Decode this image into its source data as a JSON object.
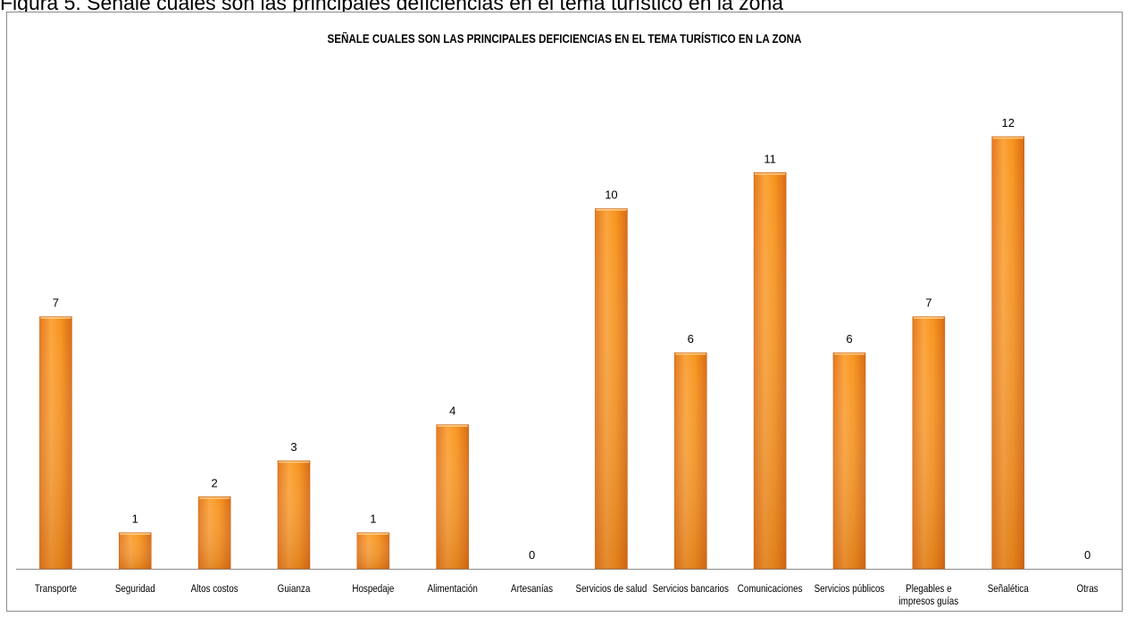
{
  "figure_caption": "Figura 5. Señale cuales son las principales deficiencias en el tema turístico en la zona",
  "chart_data": {
    "type": "bar",
    "title": "SEÑALE CUALES SON LAS PRINCIPALES DEFICIENCIAS EN EL TEMA TURÍSTICO EN LA ZONA",
    "xlabel": "",
    "ylabel": "",
    "categories": [
      "Transporte",
      "Seguridad",
      "Altos costos",
      "Guianza",
      "Hospedaje",
      "Alimentación",
      "Artesanías",
      "Servicios de salud",
      "Servicios bancarios",
      "Comunicaciones",
      "Servicios públicos",
      "Plegables e impresos guías",
      "Señalética",
      "Otras"
    ],
    "values": [
      7,
      1,
      2,
      3,
      1,
      4,
      0,
      10,
      6,
      11,
      6,
      7,
      12,
      0
    ],
    "ylim": [
      0,
      12
    ],
    "grid": false,
    "legend": "none",
    "data_labels": true,
    "bar_color": "#f7941d",
    "bar_color_dark": "#e5781d"
  }
}
